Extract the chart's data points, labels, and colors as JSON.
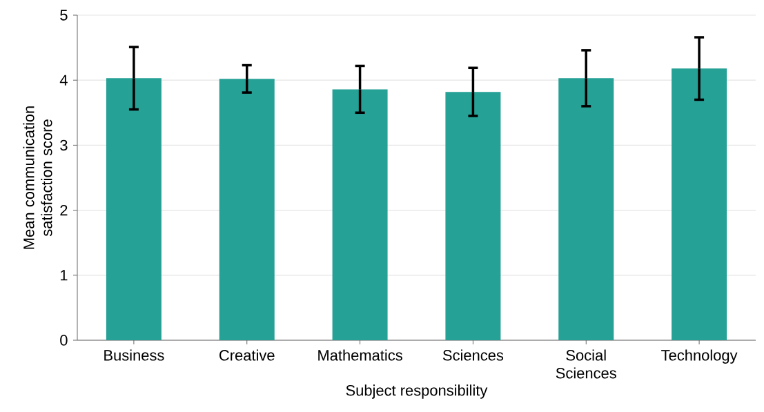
{
  "chart_data": {
    "type": "bar",
    "xlabel": "Subject responsibility",
    "ylabel": "Mean communication satisfaction score",
    "categories": [
      "Business",
      "Creative",
      "Mathematics",
      "Sciences",
      "Social Sciences",
      "Technology"
    ],
    "values": [
      4.03,
      4.02,
      3.86,
      3.82,
      4.03,
      4.18
    ],
    "errors": [
      0.48,
      0.21,
      0.36,
      0.37,
      0.43,
      0.48
    ],
    "color": "#26a196",
    "ylim": [
      0,
      5
    ],
    "yticks": [
      0,
      1,
      2,
      3,
      4,
      5
    ],
    "grid": "y"
  }
}
